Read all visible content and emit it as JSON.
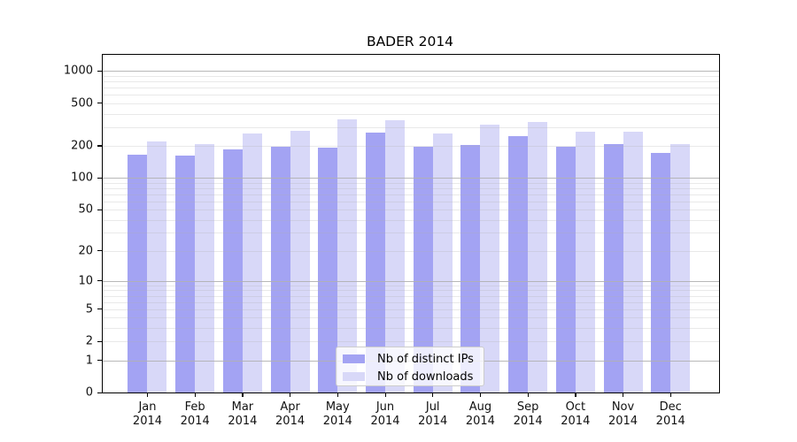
{
  "chart_data": {
    "type": "bar",
    "title": "BADER 2014",
    "categories": [
      "Jan",
      "Feb",
      "Mar",
      "Apr",
      "May",
      "Jun",
      "Jul",
      "Aug",
      "Sep",
      "Oct",
      "Nov",
      "Dec"
    ],
    "category_year": "2014",
    "series": [
      {
        "name": "Nb of distinct IPs",
        "color": "#a3a3f3",
        "values": [
          165,
          163,
          185,
          194,
          191,
          267,
          194,
          203,
          244,
          196,
          208,
          170
        ]
      },
      {
        "name": "Nb of downloads",
        "color": "#d8d8f8",
        "values": [
          218,
          206,
          262,
          276,
          352,
          347,
          260,
          314,
          332,
          271,
          272,
          206
        ]
      }
    ],
    "xlabel": "",
    "ylabel": "",
    "yscale": "log1p",
    "ylim": [
      0,
      1418
    ],
    "yticks": [
      0,
      1,
      2,
      5,
      10,
      20,
      50,
      100,
      200,
      500,
      1000
    ],
    "grid": {
      "visible": true,
      "major_lines": [
        1,
        10,
        100,
        1000
      ],
      "minor_lines": [
        2,
        3,
        4,
        5,
        6,
        7,
        8,
        9,
        20,
        30,
        40,
        50,
        60,
        70,
        80,
        90,
        200,
        300,
        400,
        500,
        600,
        700,
        800,
        900
      ]
    },
    "legend": {
      "position": "lower center"
    }
  },
  "colors": {
    "axis": "#000000",
    "grid": "#b0b0b0",
    "background": "#ffffff"
  }
}
